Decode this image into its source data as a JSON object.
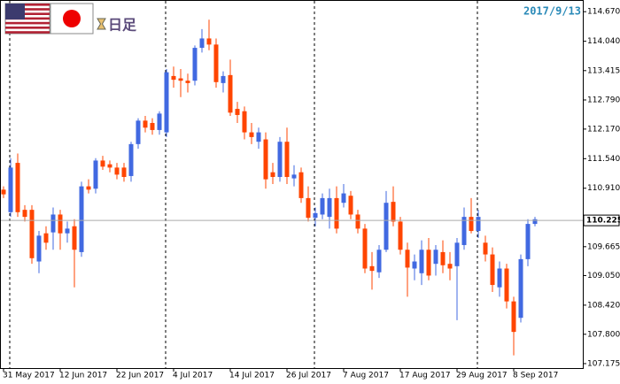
{
  "header": {
    "timeframe": "日足",
    "date_label": "2017/9/13"
  },
  "chart_data": {
    "type": "candlestick",
    "categories": [
      "31 May 2017",
      null,
      null,
      null,
      null,
      null,
      null,
      null,
      "12 Jun 2017",
      null,
      null,
      null,
      null,
      null,
      null,
      null,
      "22 Jun 2017",
      null,
      null,
      null,
      null,
      null,
      null,
      null,
      "4 Jul 2017",
      null,
      null,
      null,
      null,
      null,
      null,
      null,
      "14 Jul 2017",
      null,
      null,
      null,
      null,
      null,
      null,
      null,
      "26 Jul 2017",
      null,
      null,
      null,
      null,
      null,
      null,
      null,
      "7 Aug 2017",
      null,
      null,
      null,
      null,
      null,
      null,
      null,
      "17 Aug 2017",
      null,
      null,
      null,
      null,
      null,
      null,
      null,
      "29 Aug 2017",
      null,
      null,
      null,
      null,
      null,
      null,
      null,
      "8 Sep 2017",
      null,
      null,
      null
    ],
    "open": [
      110.88,
      110.4,
      111.45,
      110.45,
      110.45,
      109.35,
      109.95,
      109.97,
      110.35,
      109.95,
      110.1,
      109.55,
      110.95,
      110.9,
      111.5,
      111.42,
      111.35,
      111.35,
      111.17,
      111.85,
      112.35,
      112.3,
      112.15,
      112.1,
      113.3,
      113.25,
      113.2,
      113.2,
      113.9,
      114.1,
      113.97,
      113.15,
      113.32,
      112.6,
      112.55,
      112.1,
      111.9,
      111.95,
      111.25,
      111.15,
      111.9,
      111.12,
      111.25,
      110.7,
      110.28,
      110.35,
      110.3,
      110.7,
      110.6,
      110.75,
      110.35,
      110.05,
      109.25,
      109.12,
      109.6,
      110.62,
      110.2,
      109.6,
      109.2,
      109.1,
      109.6,
      109.3,
      109.55,
      109.3,
      109.25,
      109.7,
      110.3,
      110.0,
      109.75,
      109.5,
      108.8,
      109.2,
      108.5,
      108.15,
      109.4,
      110.15
    ],
    "high": [
      110.95,
      111.55,
      111.65,
      110.55,
      110.55,
      110.0,
      110.1,
      110.5,
      110.45,
      110.2,
      110.25,
      111.05,
      111.1,
      111.55,
      111.6,
      111.5,
      111.45,
      111.45,
      111.9,
      112.4,
      112.45,
      112.4,
      112.55,
      113.45,
      113.5,
      113.45,
      113.35,
      113.95,
      114.3,
      114.5,
      114.1,
      113.4,
      113.65,
      112.75,
      112.65,
      112.3,
      112.2,
      112.1,
      111.45,
      112.0,
      112.2,
      111.4,
      111.35,
      110.95,
      110.5,
      110.8,
      110.9,
      110.95,
      111.0,
      110.85,
      110.45,
      110.15,
      109.55,
      109.7,
      110.85,
      110.95,
      110.3,
      109.75,
      109.5,
      109.8,
      109.85,
      109.7,
      109.8,
      109.55,
      109.85,
      110.5,
      110.7,
      110.45,
      109.9,
      109.65,
      109.35,
      109.3,
      108.6,
      109.5,
      110.25,
      110.3
    ],
    "low": [
      110.7,
      110.3,
      110.3,
      110.2,
      109.3,
      109.1,
      109.6,
      109.6,
      109.6,
      109.75,
      108.8,
      109.45,
      110.8,
      110.8,
      111.3,
      111.25,
      111.1,
      111.05,
      111.05,
      111.75,
      112.1,
      112.05,
      112.05,
      112.0,
      113.05,
      112.85,
      112.95,
      113.1,
      113.8,
      113.85,
      113.05,
      112.95,
      112.45,
      112.3,
      111.95,
      111.85,
      111.75,
      110.9,
      111.0,
      111.05,
      111.0,
      110.95,
      110.6,
      110.2,
      110.1,
      110.25,
      110.05,
      109.95,
      110.5,
      110.25,
      109.95,
      109.1,
      108.75,
      109.0,
      109.55,
      110.1,
      109.5,
      108.6,
      108.95,
      108.85,
      108.95,
      109.05,
      109.1,
      108.95,
      108.1,
      109.6,
      109.95,
      109.85,
      109.35,
      108.7,
      108.6,
      108.35,
      107.35,
      108.05,
      109.25,
      110.1
    ],
    "close": [
      110.78,
      111.35,
      110.4,
      110.3,
      109.42,
      109.9,
      109.75,
      110.35,
      109.95,
      110.05,
      109.6,
      110.95,
      110.88,
      111.5,
      111.37,
      111.35,
      111.2,
      111.15,
      111.85,
      112.35,
      112.2,
      112.15,
      112.5,
      113.38,
      113.22,
      113.2,
      113.15,
      113.9,
      114.1,
      113.97,
      113.17,
      113.3,
      112.52,
      112.47,
      112.1,
      112.0,
      112.1,
      111.1,
      111.15,
      111.9,
      111.15,
      111.2,
      110.7,
      110.28,
      110.38,
      110.7,
      110.7,
      110.05,
      110.8,
      110.35,
      110.05,
      109.2,
      109.15,
      109.6,
      110.6,
      110.2,
      109.6,
      109.22,
      109.35,
      109.6,
      109.05,
      109.6,
      109.27,
      109.2,
      109.75,
      110.3,
      110.0,
      110.3,
      109.5,
      108.85,
      109.2,
      108.5,
      107.85,
      109.4,
      110.15,
      110.25
    ],
    "up_color": "#4169e1",
    "down_color": "#ff4500",
    "price_line": {
      "value": 110.225,
      "label": "110.225"
    },
    "ylim": [
      107.08,
      114.9
    ],
    "yticks": [
      {
        "value": 107.175,
        "label": "107.175"
      },
      {
        "value": 107.8,
        "label": "107.800"
      },
      {
        "value": 108.42,
        "label": "108.420"
      },
      {
        "value": 109.05,
        "label": "109.050"
      },
      {
        "value": 109.665,
        "label": "109.665"
      },
      {
        "value": 110.91,
        "label": "110.910"
      },
      {
        "value": 111.54,
        "label": "111.540"
      },
      {
        "value": 112.17,
        "label": "112.170"
      },
      {
        "value": 112.79,
        "label": "112.790"
      },
      {
        "value": 113.415,
        "label": "113.415"
      },
      {
        "value": 114.04,
        "label": "114.040"
      },
      {
        "value": 114.67,
        "label": "114.670"
      }
    ],
    "grid": false
  }
}
